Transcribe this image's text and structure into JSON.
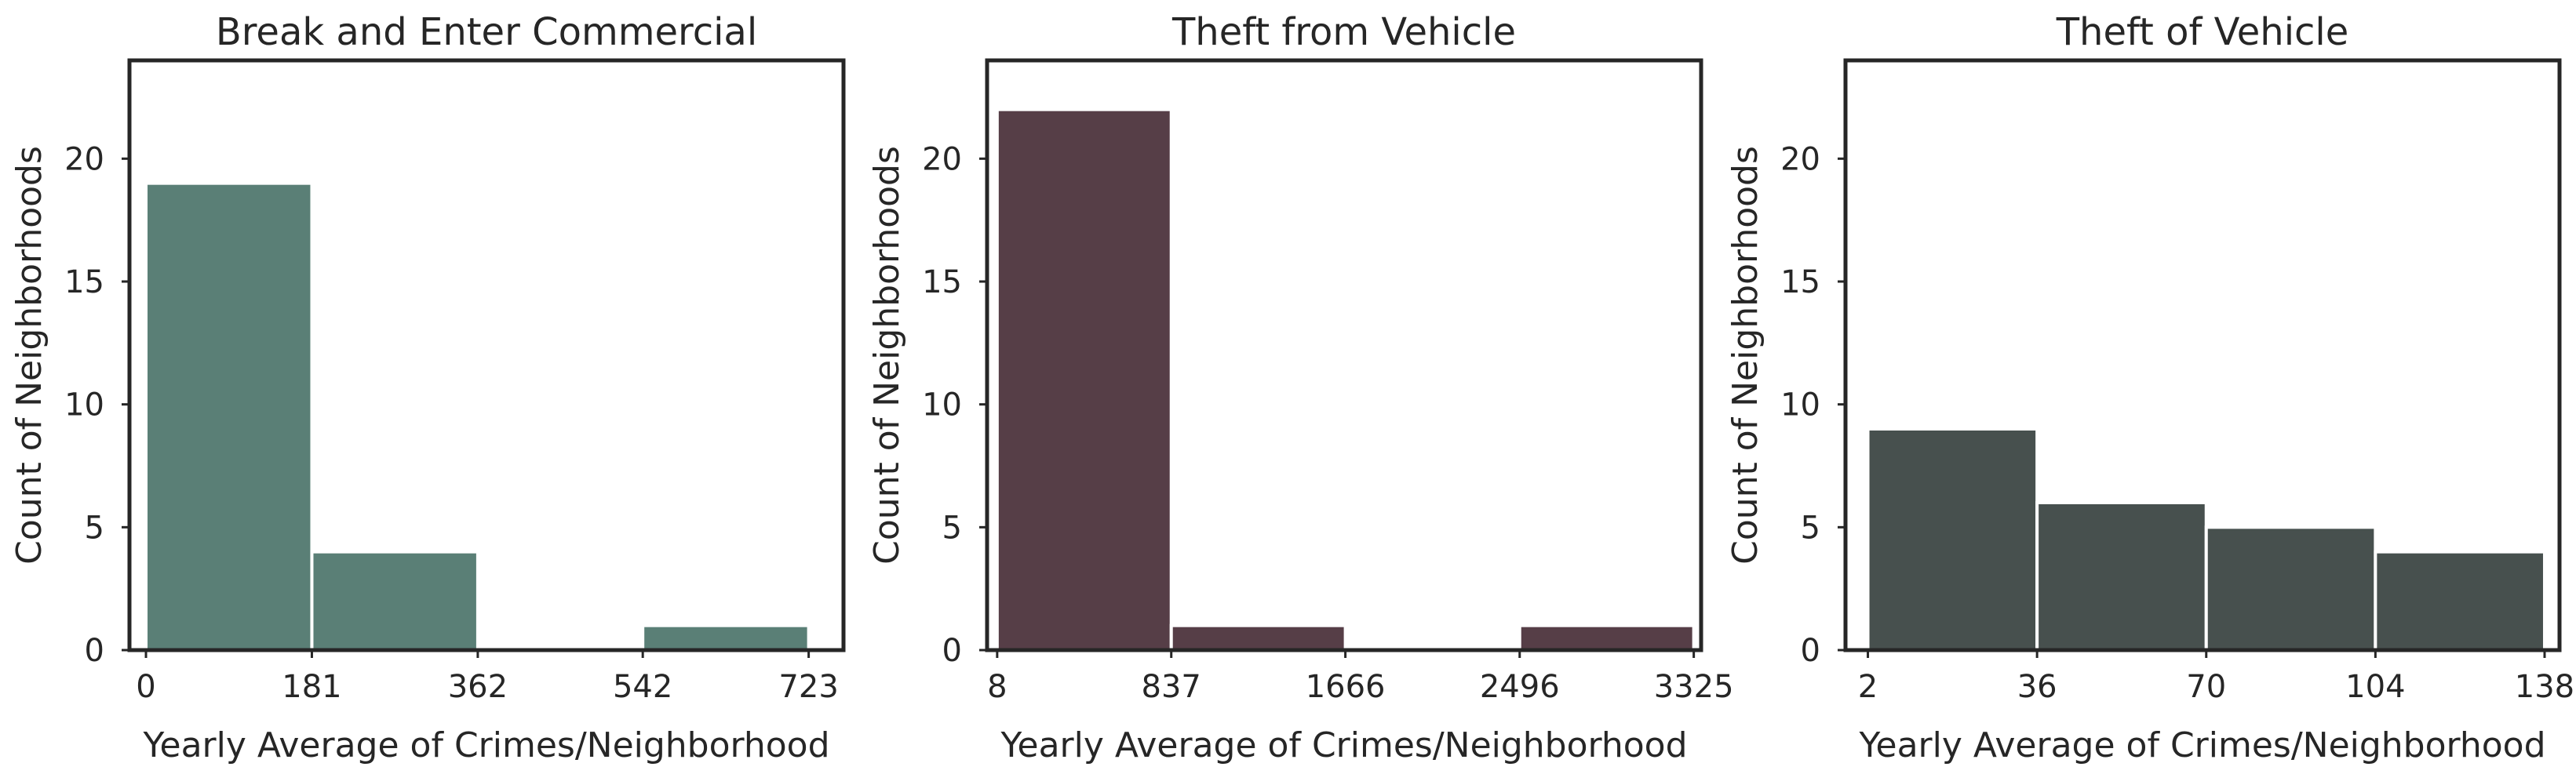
{
  "chart_data": [
    {
      "type": "bar",
      "title": "Break and Enter Commercial",
      "xlabel": "Yearly Average of Crimes/Neighborhood",
      "ylabel": "Count of Neighborhoods",
      "color": "#5a7f76",
      "xlim": [
        -18,
        761
      ],
      "ylim": [
        0,
        24
      ],
      "xticks": [
        0,
        181,
        362,
        542,
        723
      ],
      "xtick_labels": [
        "0",
        "181",
        "362",
        "542",
        "723"
      ],
      "yticks": [
        0,
        5,
        10,
        15,
        20
      ],
      "ytick_labels": [
        "0",
        "5",
        "10",
        "15",
        "20"
      ],
      "bins": [
        {
          "x0": 0,
          "x1": 181,
          "count": 19
        },
        {
          "x0": 181,
          "x1": 362,
          "count": 4
        },
        {
          "x0": 362,
          "x1": 542,
          "count": 0
        },
        {
          "x0": 542,
          "x1": 723,
          "count": 1
        }
      ]
    },
    {
      "type": "bar",
      "title": "Theft from Vehicle",
      "xlabel": "Yearly Average of Crimes/Neighborhood",
      "ylabel": "Count of Neighborhoods",
      "color": "#563e47",
      "xlim": [
        -40,
        3360
      ],
      "ylim": [
        0,
        24
      ],
      "xticks": [
        8,
        837,
        1666,
        2496,
        3325
      ],
      "xtick_labels": [
        "8",
        "837",
        "1666",
        "2496",
        "3325"
      ],
      "yticks": [
        0,
        5,
        10,
        15,
        20
      ],
      "ytick_labels": [
        "0",
        "5",
        "10",
        "15",
        "20"
      ],
      "bins": [
        {
          "x0": 8,
          "x1": 837,
          "count": 22
        },
        {
          "x0": 837,
          "x1": 1666,
          "count": 1
        },
        {
          "x0": 1666,
          "x1": 2496,
          "count": 0
        },
        {
          "x0": 2496,
          "x1": 3325,
          "count": 1
        }
      ]
    },
    {
      "type": "bar",
      "title": "Theft of Vehicle",
      "xlabel": "Yearly Average of Crimes/Neighborhood",
      "ylabel": "Count of Neighborhoods",
      "color": "#47504e",
      "xlim": [
        -2.5,
        141
      ],
      "ylim": [
        0,
        24
      ],
      "xticks": [
        2,
        36,
        70,
        104,
        138
      ],
      "xtick_labels": [
        "2",
        "36",
        "70",
        "104",
        "138"
      ],
      "yticks": [
        0,
        5,
        10,
        15,
        20
      ],
      "ytick_labels": [
        "0",
        "5",
        "10",
        "15",
        "20"
      ],
      "bins": [
        {
          "x0": 2,
          "x1": 36,
          "count": 9
        },
        {
          "x0": 36,
          "x1": 70,
          "count": 6
        },
        {
          "x0": 70,
          "x1": 104,
          "count": 5
        },
        {
          "x0": 104,
          "x1": 138,
          "count": 4
        }
      ]
    }
  ]
}
